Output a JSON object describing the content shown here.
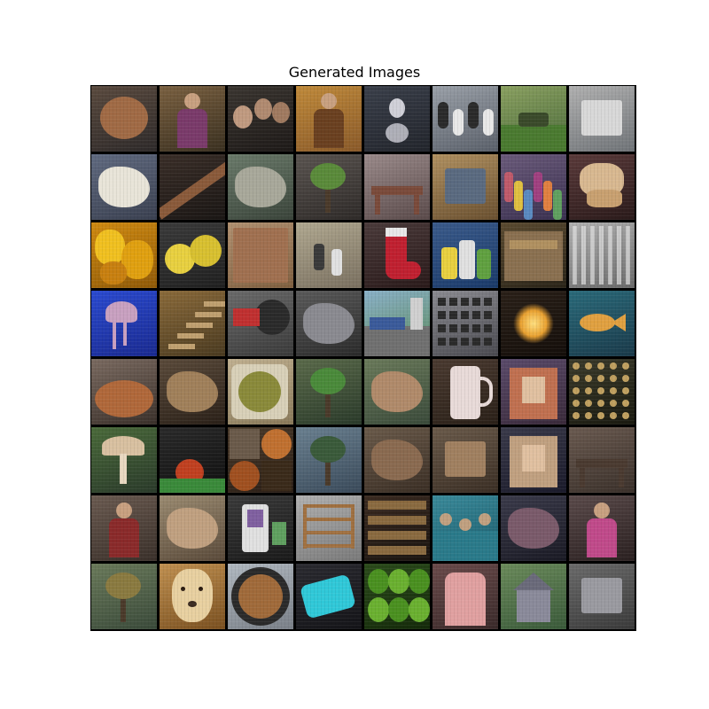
{
  "figure": {
    "title": "Generated Images"
  },
  "tiles": [
    {
      "bg": [
        "#5a4a3e",
        "#2e2a2a"
      ],
      "shape": "ellipse",
      "fg": "#a06a45",
      "desc": "potato"
    },
    {
      "bg": [
        "#7a6040",
        "#3a3020"
      ],
      "shape": "person",
      "fg": "#7a3a6a",
      "desc": "person"
    },
    {
      "bg": [
        "#3a3530",
        "#1e1a18"
      ],
      "shape": "faces",
      "fg": "#c09a80",
      "desc": "people"
    },
    {
      "bg": [
        "#c08a3a",
        "#8a5a2a"
      ],
      "shape": "person",
      "fg": "#6a4020",
      "desc": "figure"
    },
    {
      "bg": [
        "#3a3f4a",
        "#22252c"
      ],
      "shape": "ornament",
      "fg": "#d0d0d8",
      "desc": "ornament"
    },
    {
      "bg": [
        "#9aa0a8",
        "#5a606a"
      ],
      "shape": "birds",
      "fg": "#2a2a2a",
      "desc": "penguins"
    },
    {
      "bg": [
        "#8aa060",
        "#4a6a3a"
      ],
      "shape": "ground",
      "fg": "#3a4a2a",
      "desc": "field"
    },
    {
      "bg": [
        "#b0b0b0",
        "#707478"
      ],
      "shape": "box",
      "fg": "#d8d8d8",
      "desc": "furniture"
    },
    {
      "bg": [
        "#606a80",
        "#3a4050"
      ],
      "shape": "blob",
      "fg": "#e8e4d8",
      "desc": "food"
    },
    {
      "bg": [
        "#3a2e28",
        "#1a1614"
      ],
      "shape": "diag",
      "fg": "#8a5a3a",
      "desc": "stick"
    },
    {
      "bg": [
        "#6a7a6a",
        "#3a443a"
      ],
      "shape": "blob",
      "fg": "#a8a89a",
      "desc": "animal"
    },
    {
      "bg": [
        "#5a5450",
        "#2e2a28"
      ],
      "shape": "plant",
      "fg": "#5a8a3a",
      "desc": "plant"
    },
    {
      "bg": [
        "#9a8a8a",
        "#5a4a4a"
      ],
      "shape": "table",
      "fg": "#7a4a3a",
      "desc": "room"
    },
    {
      "bg": [
        "#b09060",
        "#6a5030"
      ],
      "shape": "box",
      "fg": "#5a6a80",
      "desc": "shelf"
    },
    {
      "bg": [
        "#6a5a7a",
        "#3a3050"
      ],
      "shape": "crowd",
      "fg": "#c05a6a",
      "desc": "market"
    },
    {
      "bg": [
        "#5a3a3a",
        "#2a1a1a"
      ],
      "shape": "dog",
      "fg": "#d8b890",
      "desc": "dog"
    },
    {
      "bg": [
        "#d08a10",
        "#905a08"
      ],
      "shape": "peppers",
      "fg": "#f0c020",
      "desc": "peppers"
    },
    {
      "bg": [
        "#3a3a3a",
        "#202020"
      ],
      "shape": "lemons",
      "fg": "#e8d040",
      "desc": "lemons"
    },
    {
      "bg": [
        "#b09070",
        "#806040"
      ],
      "shape": "flat",
      "fg": "#a07050",
      "desc": "texture"
    },
    {
      "bg": [
        "#b0a890",
        "#7a7060"
      ],
      "shape": "players",
      "fg": "#3a3a3a",
      "desc": "court"
    },
    {
      "bg": [
        "#4a3a3a",
        "#2a1a1a"
      ],
      "shape": "stocking",
      "fg": "#c02030",
      "desc": "stocking"
    },
    {
      "bg": [
        "#3a5a8a",
        "#1a3a6a"
      ],
      "shape": "toys",
      "fg": "#e8d040",
      "desc": "figures"
    },
    {
      "bg": [
        "#5a4a30",
        "#2a2418"
      ],
      "shape": "stall",
      "fg": "#8a7050",
      "desc": "stall"
    },
    {
      "bg": [
        "#b0b0b0",
        "#6a6a6a"
      ],
      "shape": "stripes",
      "fg": "#e0e0e0",
      "desc": "curtain"
    },
    {
      "bg": [
        "#2a4ad0",
        "#1a2a90"
      ],
      "shape": "jelly",
      "fg": "#c8a0c0",
      "desc": "jellyfish"
    },
    {
      "bg": [
        "#8a6a3a",
        "#4a3a20"
      ],
      "shape": "stairs",
      "fg": "#c0a070",
      "desc": "stairs"
    },
    {
      "bg": [
        "#6a6a6a",
        "#3a3a3a"
      ],
      "shape": "tractor",
      "fg": "#c03030",
      "desc": "tractor"
    },
    {
      "bg": [
        "#5a5a5a",
        "#2a2a2a"
      ],
      "shape": "blob",
      "fg": "#8a8a90",
      "desc": "rocks"
    },
    {
      "bg": [
        "#8ab0c8",
        "#5a8a5a"
      ],
      "shape": "street",
      "fg": "#3a5a9a",
      "desc": "street"
    },
    {
      "bg": [
        "#8a8a90",
        "#4a4a50"
      ],
      "shape": "keys",
      "fg": "#2a2a2a",
      "desc": "keyboard"
    },
    {
      "bg": [
        "#2a2018",
        "#140e0a"
      ],
      "shape": "fire",
      "fg": "#e8a030",
      "desc": "fire"
    },
    {
      "bg": [
        "#2a6a7a",
        "#1a3a4a"
      ],
      "shape": "fish",
      "fg": "#e0a040",
      "desc": "fish"
    },
    {
      "bg": [
        "#7a6a60",
        "#3a302a"
      ],
      "shape": "bowl",
      "fg": "#b0683a",
      "desc": "dish"
    },
    {
      "bg": [
        "#5a4a3a",
        "#2a2018"
      ],
      "shape": "blob",
      "fg": "#a0805a",
      "desc": "cat"
    },
    {
      "bg": [
        "#c0b090",
        "#8a7a5a"
      ],
      "shape": "plate",
      "fg": "#8a8a3a",
      "desc": "food"
    },
    {
      "bg": [
        "#5a6a4a",
        "#2a3a2a"
      ],
      "shape": "plant",
      "fg": "#4a8a3a",
      "desc": "garden"
    },
    {
      "bg": [
        "#6a7a5a",
        "#3a4a3a"
      ],
      "shape": "blob",
      "fg": "#b08a6a",
      "desc": "animal"
    },
    {
      "bg": [
        "#4a3a30",
        "#2a2018"
      ],
      "shape": "jug",
      "fg": "#e8dad8",
      "desc": "pitcher"
    },
    {
      "bg": [
        "#5a4a6a",
        "#3a2a3a"
      ],
      "shape": "altar",
      "fg": "#c07050",
      "desc": "altar"
    },
    {
      "bg": [
        "#3a3a2a",
        "#1a1a10"
      ],
      "shape": "grid",
      "fg": "#c0a060",
      "desc": "wine"
    },
    {
      "bg": [
        "#4a6a3a",
        "#2a3a2a"
      ],
      "shape": "mushroom",
      "fg": "#d8c0a0",
      "desc": "mushroom"
    },
    {
      "bg": [
        "#2a2a2a",
        "#101010"
      ],
      "shape": "apple",
      "fg": "#c04020",
      "desc": "apple"
    },
    {
      "bg": [
        "#4a3a2a",
        "#2a1e16"
      ],
      "shape": "collage",
      "fg": "#c07030",
      "desc": "food"
    },
    {
      "bg": [
        "#6a8090",
        "#3a4a5a"
      ],
      "shape": "plant",
      "fg": "#3a5a3a",
      "desc": "plant"
    },
    {
      "bg": [
        "#6a5a4a",
        "#3a2e24"
      ],
      "shape": "blob",
      "fg": "#8a6a50",
      "desc": "animal"
    },
    {
      "bg": [
        "#6a5a4a",
        "#3a2e24"
      ],
      "shape": "box",
      "fg": "#a08060",
      "desc": "room"
    },
    {
      "bg": [
        "#3a3a4a",
        "#1a1a2a"
      ],
      "shape": "altar",
      "fg": "#c0a080",
      "desc": "church"
    },
    {
      "bg": [
        "#6a5a50",
        "#3a302a"
      ],
      "shape": "table",
      "fg": "#4a3a30",
      "desc": "room"
    },
    {
      "bg": [
        "#6a5a50",
        "#3a302a"
      ],
      "shape": "person",
      "fg": "#8a2a2a",
      "desc": "woman"
    },
    {
      "bg": [
        "#9a8a70",
        "#5a4a3a"
      ],
      "shape": "blob",
      "fg": "#c0a080",
      "desc": "dog"
    },
    {
      "bg": [
        "#3a3a3a",
        "#1a1a1a"
      ],
      "shape": "device",
      "fg": "#e0e0e0",
      "desc": "device"
    },
    {
      "bg": [
        "#b0b0b0",
        "#7a7a7a"
      ],
      "shape": "rack",
      "fg": "#a07040",
      "desc": "rack"
    },
    {
      "bg": [
        "#3a2a20",
        "#1a1410"
      ],
      "shape": "shelves",
      "fg": "#8a6a40",
      "desc": "shelves"
    },
    {
      "bg": [
        "#3a8a9a",
        "#1a5a6a"
      ],
      "shape": "swim",
      "fg": "#c0a080",
      "desc": "swimmers"
    },
    {
      "bg": [
        "#3a3a4a",
        "#1a1a24"
      ],
      "shape": "blob",
      "fg": "#7a5a6a",
      "desc": "people"
    },
    {
      "bg": [
        "#5a4a4a",
        "#2a2020"
      ],
      "shape": "person",
      "fg": "#c04a8a",
      "desc": "dancer"
    },
    {
      "bg": [
        "#6a7a5a",
        "#3a4a3a"
      ],
      "shape": "plant",
      "fg": "#8a7a40",
      "desc": "plants"
    },
    {
      "bg": [
        "#c09050",
        "#7a5020"
      ],
      "shape": "dogface",
      "fg": "#e8d0a0",
      "desc": "labrador"
    },
    {
      "bg": [
        "#b0b8c0",
        "#7a8088"
      ],
      "shape": "platefood",
      "fg": "#a06a3a",
      "desc": "plate"
    },
    {
      "bg": [
        "#2a2a30",
        "#141418"
      ],
      "shape": "tag",
      "fg": "#30c8d8",
      "desc": "tag"
    },
    {
      "bg": [
        "#2a4a1a",
        "#142a0a"
      ],
      "shape": "limes",
      "fg": "#6ab030",
      "desc": "limes"
    },
    {
      "bg": [
        "#6a4a4a",
        "#3a2a2a"
      ],
      "shape": "shirt",
      "fg": "#e0a0a0",
      "desc": "shirt"
    },
    {
      "bg": [
        "#6a8a5a",
        "#3a5a3a"
      ],
      "shape": "house",
      "fg": "#8a8a9a",
      "desc": "house"
    },
    {
      "bg": [
        "#6a6a6a",
        "#3a3a3a"
      ],
      "shape": "box",
      "fg": "#9a9aa0",
      "desc": "machinery"
    }
  ]
}
